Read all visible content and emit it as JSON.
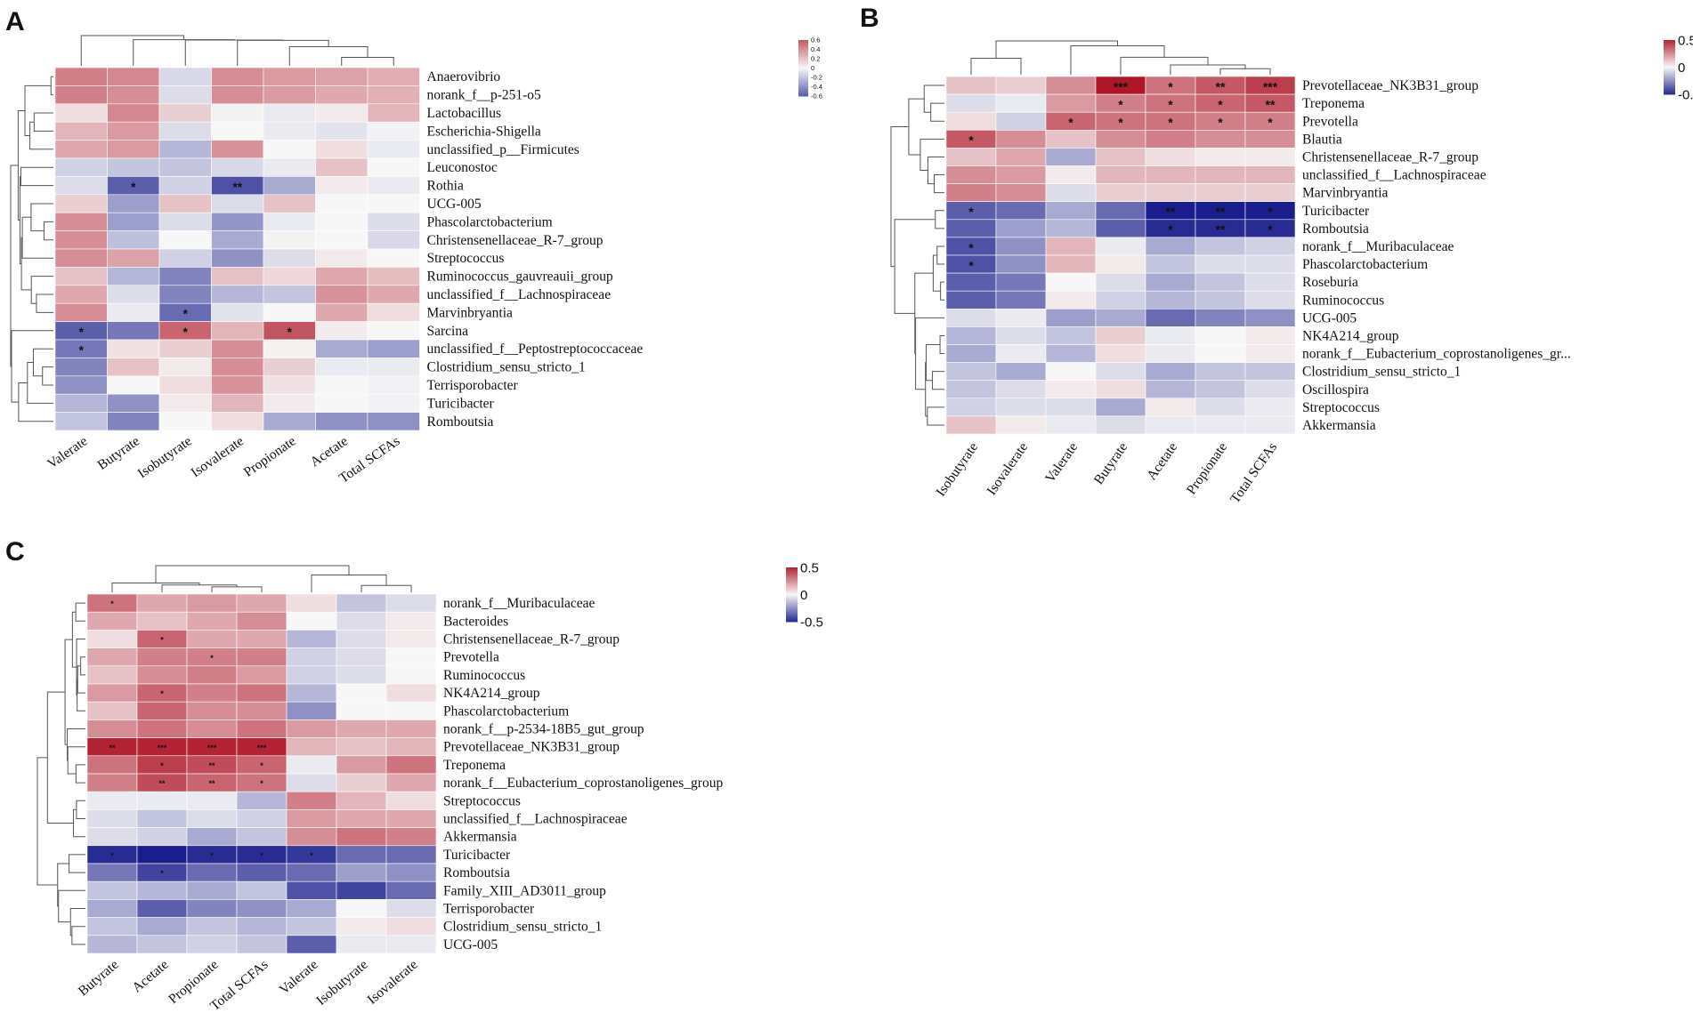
{
  "chart_data": [
    {
      "type": "heatmap",
      "panel_label": "A",
      "columns": [
        "Valerate",
        "Butyrate",
        "Isobutyrate",
        "Isovalerate",
        "Propionate",
        "Acetate",
        "Total SCFAs"
      ],
      "rows": [
        "Anaerovibrio",
        "norank_f__p-251-o5",
        "Lactobacillus",
        "Escherichia-Shigella",
        "unclassified_p__Firmicutes",
        "Leuconostoc",
        "Rothia",
        "UCG-005",
        "Phascolarctobacterium",
        "Christensenellaceae_R-7_group",
        "Streptococcus",
        "Ruminococcus_gauvreauii_group",
        "unclassified_f__Lachnospiraceae",
        "Marvinbryantia",
        "Sarcina",
        "unclassified_f__Peptostreptococcaceae",
        "Clostridium_sensu_stricto_1",
        "Terrisporobacter",
        "Turicibacter",
        "Romboutsia"
      ],
      "values": [
        [
          0.45,
          0.42,
          -0.12,
          0.4,
          0.35,
          0.32,
          0.28
        ],
        [
          0.45,
          0.4,
          -0.1,
          0.4,
          0.35,
          0.3,
          0.27
        ],
        [
          0.1,
          0.42,
          0.15,
          0.02,
          -0.05,
          0.05,
          0.25
        ],
        [
          0.25,
          0.35,
          -0.1,
          0.0,
          -0.05,
          -0.08,
          -0.02
        ],
        [
          0.3,
          0.35,
          -0.25,
          0.38,
          0.0,
          0.1,
          -0.05
        ],
        [
          -0.15,
          -0.2,
          -0.2,
          -0.12,
          -0.05,
          0.2,
          0.0
        ],
        [
          -0.1,
          -0.6,
          -0.15,
          -0.65,
          -0.3,
          0.05,
          -0.05
        ],
        [
          0.15,
          -0.35,
          0.2,
          -0.1,
          0.2,
          0.0,
          0.0
        ],
        [
          0.4,
          -0.35,
          -0.1,
          -0.38,
          -0.05,
          0.0,
          -0.1
        ],
        [
          0.4,
          -0.22,
          0.0,
          -0.3,
          0.02,
          0.0,
          -0.12
        ],
        [
          0.4,
          0.32,
          -0.15,
          -0.4,
          -0.1,
          0.05,
          0.0
        ],
        [
          0.2,
          -0.25,
          -0.45,
          0.2,
          0.12,
          0.3,
          0.22
        ],
        [
          0.3,
          -0.1,
          -0.45,
          -0.25,
          -0.2,
          0.38,
          0.3
        ],
        [
          0.4,
          -0.05,
          -0.55,
          -0.08,
          0.0,
          0.3,
          0.1
        ],
        [
          -0.6,
          -0.5,
          0.55,
          0.25,
          0.62,
          0.05,
          0.0
        ],
        [
          -0.5,
          0.08,
          0.15,
          0.4,
          0.02,
          -0.3,
          -0.35
        ],
        [
          -0.45,
          0.2,
          0.05,
          0.4,
          0.15,
          -0.05,
          -0.05
        ],
        [
          -0.4,
          0.0,
          0.1,
          0.38,
          0.08,
          0.0,
          -0.02
        ],
        [
          -0.25,
          -0.4,
          0.05,
          0.25,
          0.05,
          0.0,
          -0.02
        ],
        [
          -0.2,
          -0.45,
          0.0,
          0.1,
          -0.3,
          -0.4,
          -0.4
        ]
      ],
      "significance": [
        [
          "",
          "",
          "",
          "",
          "",
          "",
          ""
        ],
        [
          "",
          "",
          "",
          "",
          "",
          "",
          ""
        ],
        [
          "",
          "",
          "",
          "",
          "",
          "",
          ""
        ],
        [
          "",
          "",
          "",
          "",
          "",
          "",
          ""
        ],
        [
          "",
          "",
          "",
          "",
          "",
          "",
          ""
        ],
        [
          "",
          "",
          "",
          "",
          "",
          "",
          ""
        ],
        [
          "",
          "*",
          "",
          "**",
          "",
          "",
          ""
        ],
        [
          "",
          "",
          "",
          "",
          "",
          "",
          ""
        ],
        [
          "",
          "",
          "",
          "",
          "",
          "",
          ""
        ],
        [
          "",
          "",
          "",
          "",
          "",
          "",
          ""
        ],
        [
          "",
          "",
          "",
          "",
          "",
          "",
          ""
        ],
        [
          "",
          "",
          "",
          "",
          "",
          "",
          ""
        ],
        [
          "",
          "",
          "",
          "",
          "",
          "",
          ""
        ],
        [
          "",
          "",
          "*",
          "",
          "",
          "",
          ""
        ],
        [
          "*",
          "",
          "*",
          "",
          "*",
          "",
          ""
        ],
        [
          "*",
          "",
          "",
          "",
          "",
          "",
          ""
        ],
        [
          "",
          "",
          "",
          "",
          "",
          "",
          ""
        ],
        [
          "",
          "",
          "",
          "",
          "",
          "",
          ""
        ],
        [
          "",
          "",
          "",
          "",
          "",
          "",
          ""
        ],
        [
          "",
          "",
          "",
          "",
          "",
          "",
          ""
        ]
      ],
      "legend": {
        "min": -0.6,
        "max": 0.6,
        "ticks": [
          "0.6",
          "0.4",
          "0.2",
          "0",
          "-0.2",
          "-0.4",
          "-0.6"
        ]
      }
    },
    {
      "type": "heatmap",
      "panel_label": "B",
      "columns": [
        "Isobutyrate",
        "Isovalerate",
        "Valerate",
        "Butyrate",
        "Acetate",
        "Propionate",
        "Total SCFAs"
      ],
      "rows": [
        "Prevotellaceae_NK3B31_group",
        "Treponema",
        "Prevotella",
        "Blautia",
        "Christensenellaceae_R-7_group",
        "unclassified_f__Lachnospiraceae",
        "Marvinbryantia",
        "Turicibacter",
        "Romboutsia",
        "norank_f__Muribaculaceae",
        "Phascolarctobacterium",
        "Roseburia",
        "Ruminococcus",
        "UCG-005",
        "NK4A214_group",
        "norank_f__Eubacterium_coprostanoligenes_gr...",
        "Clostridium_sensu_stricto_1",
        "Oscillospira",
        "Streptococcus",
        "Akkermansia"
      ],
      "values": [
        [
          0.2,
          0.15,
          0.4,
          0.85,
          0.5,
          0.6,
          0.7
        ],
        [
          -0.1,
          -0.05,
          0.35,
          0.45,
          0.5,
          0.55,
          0.6
        ],
        [
          0.1,
          -0.15,
          0.55,
          0.5,
          0.5,
          0.45,
          0.45
        ],
        [
          0.6,
          0.4,
          0.2,
          0.4,
          0.45,
          0.4,
          0.4
        ],
        [
          0.2,
          0.3,
          -0.3,
          0.2,
          0.1,
          0.05,
          0.05
        ],
        [
          0.4,
          0.35,
          0.05,
          0.25,
          0.25,
          0.25,
          0.25
        ],
        [
          0.45,
          0.4,
          -0.1,
          0.15,
          0.15,
          0.15,
          0.15
        ],
        [
          -0.6,
          -0.55,
          -0.3,
          -0.55,
          -0.85,
          -0.85,
          -0.85
        ],
        [
          -0.6,
          -0.35,
          -0.25,
          -0.6,
          -0.8,
          -0.8,
          -0.8
        ],
        [
          -0.65,
          -0.4,
          0.25,
          -0.05,
          -0.3,
          -0.2,
          -0.15
        ],
        [
          -0.65,
          -0.4,
          0.25,
          0.05,
          -0.2,
          -0.1,
          -0.1
        ],
        [
          -0.6,
          -0.5,
          0.0,
          -0.1,
          -0.3,
          -0.2,
          -0.1
        ],
        [
          -0.6,
          -0.5,
          0.05,
          -0.15,
          -0.25,
          -0.2,
          -0.1
        ],
        [
          -0.1,
          -0.05,
          -0.35,
          -0.3,
          -0.55,
          -0.45,
          -0.4
        ],
        [
          -0.25,
          -0.1,
          -0.2,
          0.15,
          -0.05,
          0.0,
          0.05
        ],
        [
          -0.3,
          -0.05,
          -0.25,
          0.1,
          -0.05,
          0.0,
          0.05
        ],
        [
          -0.2,
          -0.3,
          0.0,
          -0.1,
          -0.3,
          -0.2,
          -0.2
        ],
        [
          -0.2,
          -0.1,
          0.05,
          0.1,
          -0.25,
          -0.2,
          -0.1
        ],
        [
          -0.15,
          -0.1,
          -0.1,
          -0.3,
          0.05,
          -0.1,
          -0.05
        ],
        [
          0.2,
          0.05,
          -0.05,
          -0.1,
          -0.05,
          -0.05,
          -0.05
        ]
      ],
      "significance": [
        [
          "",
          "",
          "",
          "***",
          "*",
          "**",
          "***"
        ],
        [
          "",
          "",
          "",
          "*",
          "*",
          "*",
          "**"
        ],
        [
          "",
          "",
          "*",
          "*",
          "*",
          "*",
          "*"
        ],
        [
          "*",
          "",
          "",
          "",
          "",
          "",
          ""
        ],
        [
          "",
          "",
          "",
          "",
          "",
          "",
          ""
        ],
        [
          "",
          "",
          "",
          "",
          "",
          "",
          ""
        ],
        [
          "",
          "",
          "",
          "",
          "",
          "",
          ""
        ],
        [
          "*",
          "",
          "",
          "",
          "**",
          "**",
          "*"
        ],
        [
          "",
          "",
          "",
          "",
          "*",
          "**",
          "*"
        ],
        [
          "*",
          "",
          "",
          "",
          "",
          "",
          ""
        ],
        [
          "*",
          "",
          "",
          "",
          "",
          "",
          ""
        ],
        [
          "",
          "",
          "",
          "",
          "",
          "",
          ""
        ],
        [
          "",
          "",
          "",
          "",
          "",
          "",
          ""
        ],
        [
          "",
          "",
          "",
          "",
          "",
          "",
          ""
        ],
        [
          "",
          "",
          "",
          "",
          "",
          "",
          ""
        ],
        [
          "",
          "",
          "",
          "",
          "",
          "",
          ""
        ],
        [
          "",
          "",
          "",
          "",
          "",
          "",
          ""
        ],
        [
          "",
          "",
          "",
          "",
          "",
          "",
          ""
        ],
        [
          "",
          "",
          "",
          "",
          "",
          "",
          ""
        ],
        [
          "",
          "",
          "",
          "",
          "",
          "",
          ""
        ]
      ],
      "legend": {
        "min": -0.8,
        "max": 0.8,
        "ticks": [
          "0.5",
          "0",
          "-0.5"
        ]
      }
    },
    {
      "type": "heatmap",
      "panel_label": "C",
      "columns": [
        "Butyrate",
        "Acetate",
        "Propionate",
        "Total SCFAs",
        "Valerate",
        "Isobutyrate",
        "Isovalerate"
      ],
      "rows": [
        "norank_f__Muribaculaceae",
        "Bacteroides",
        "Christensenellaceae_R-7_group",
        "Prevotella",
        "Ruminococcus",
        "NK4A214_group",
        "Phascolarctobacterium",
        "norank_f__p-2534-18B5_gut_group",
        "Prevotellaceae_NK3B31_group",
        "Treponema",
        "norank_f__Eubacterium_coprostanoligenes_group",
        "Streptococcus",
        "unclassified_f__Lachnospiraceae",
        "Akkermansia",
        "Turicibacter",
        "Romboutsia",
        "Family_XIII_AD3011_group",
        "Terrisporobacter",
        "Clostridium_sensu_stricto_1",
        "UCG-005"
      ],
      "values": [
        [
          0.5,
          0.3,
          0.35,
          0.3,
          0.1,
          -0.2,
          -0.1
        ],
        [
          0.3,
          0.2,
          0.3,
          0.4,
          0.0,
          -0.1,
          0.05
        ],
        [
          0.1,
          0.55,
          0.3,
          0.3,
          -0.25,
          -0.1,
          0.05
        ],
        [
          0.3,
          0.45,
          0.45,
          0.45,
          -0.15,
          -0.1,
          0.0
        ],
        [
          0.2,
          0.4,
          0.45,
          0.35,
          -0.15,
          -0.1,
          0.0
        ],
        [
          0.35,
          0.55,
          0.45,
          0.5,
          -0.25,
          0.0,
          0.1
        ],
        [
          0.2,
          0.55,
          0.4,
          0.4,
          -0.4,
          0.0,
          0.0
        ],
        [
          0.4,
          0.5,
          0.4,
          0.5,
          0.35,
          0.3,
          0.3
        ],
        [
          0.8,
          0.8,
          0.8,
          0.8,
          0.25,
          0.2,
          0.25
        ],
        [
          0.5,
          0.7,
          0.65,
          0.55,
          -0.05,
          0.35,
          0.5
        ],
        [
          0.45,
          0.65,
          0.55,
          0.5,
          -0.1,
          0.15,
          0.3
        ],
        [
          -0.05,
          -0.05,
          -0.05,
          -0.25,
          0.45,
          0.25,
          0.1
        ],
        [
          -0.1,
          -0.2,
          -0.1,
          -0.15,
          0.35,
          0.3,
          0.3
        ],
        [
          -0.1,
          -0.15,
          -0.3,
          -0.2,
          0.4,
          0.5,
          0.45
        ],
        [
          -0.8,
          -0.85,
          -0.8,
          -0.8,
          -0.75,
          -0.55,
          -0.55
        ],
        [
          -0.5,
          -0.7,
          -0.55,
          -0.6,
          -0.55,
          -0.35,
          -0.4
        ],
        [
          -0.2,
          -0.25,
          -0.3,
          -0.2,
          -0.65,
          -0.7,
          -0.55
        ],
        [
          -0.3,
          -0.6,
          -0.45,
          -0.4,
          -0.3,
          0.0,
          -0.1
        ],
        [
          -0.2,
          -0.3,
          -0.2,
          -0.25,
          -0.2,
          0.05,
          0.1
        ],
        [
          -0.25,
          -0.2,
          -0.15,
          -0.2,
          -0.6,
          -0.05,
          -0.05
        ]
      ],
      "significance": [
        [
          "*",
          "",
          "",
          "",
          "",
          "",
          ""
        ],
        [
          "",
          "",
          "",
          "",
          "",
          "",
          ""
        ],
        [
          "",
          "*",
          "",
          "",
          "",
          "",
          ""
        ],
        [
          "",
          "",
          "*",
          "",
          "",
          "",
          ""
        ],
        [
          "",
          "",
          "",
          "",
          "",
          "",
          ""
        ],
        [
          "",
          "*",
          "",
          "",
          "",
          "",
          ""
        ],
        [
          "",
          "",
          "",
          "",
          "",
          "",
          ""
        ],
        [
          "",
          "",
          "",
          "",
          "",
          "",
          ""
        ],
        [
          "**",
          "***",
          "***",
          "***",
          "",
          "",
          ""
        ],
        [
          "",
          "*",
          "**",
          "*",
          "",
          "",
          ""
        ],
        [
          "",
          "**",
          "**",
          "*",
          "",
          "",
          ""
        ],
        [
          "",
          "",
          "",
          "",
          "",
          "",
          ""
        ],
        [
          "",
          "",
          "",
          "",
          "",
          "",
          ""
        ],
        [
          "",
          "",
          "",
          "",
          "",
          "",
          ""
        ],
        [
          "*",
          "",
          "*",
          "*",
          "*",
          "",
          ""
        ],
        [
          "",
          "*",
          "",
          "",
          "",
          "",
          ""
        ],
        [
          "",
          "",
          "",
          "",
          "",
          "",
          ""
        ],
        [
          "",
          "",
          "",
          "",
          "",
          "",
          ""
        ],
        [
          "",
          "",
          "",
          "",
          "",
          "",
          ""
        ],
        [
          "",
          "",
          "",
          "",
          "",
          "",
          ""
        ]
      ],
      "legend": {
        "min": -0.8,
        "max": 0.8,
        "ticks": [
          "0.5",
          "0",
          "-0.5"
        ]
      }
    }
  ]
}
